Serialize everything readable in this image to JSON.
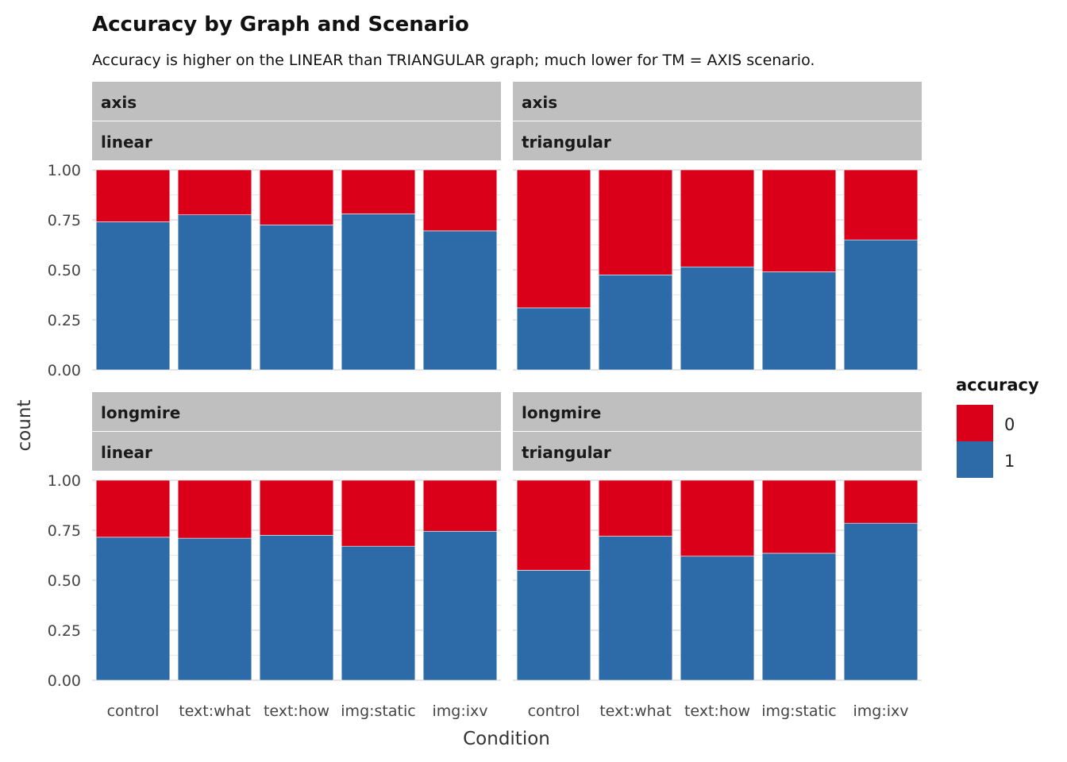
{
  "chart_data": {
    "type": "bar",
    "stacked": "fill",
    "title": "Accuracy by Graph and Scenario",
    "subtitle": "Accuracy is higher on the LINEAR than TRIANGULAR graph; much lower for TM = AXIS scenario.",
    "xlabel": "Condition",
    "ylabel": "count",
    "ylim": [
      0,
      1
    ],
    "yticks": [
      "0.00",
      "0.25",
      "0.50",
      "0.75",
      "1.00"
    ],
    "categories": [
      "control",
      "text:what",
      "text:how",
      "img:static",
      "img:ixv"
    ],
    "grid": true,
    "legend": {
      "title": "accuracy",
      "position": "right",
      "entries": [
        {
          "label": "0",
          "color": "#DA001A"
        },
        {
          "label": "1",
          "color": "#2C6AA8"
        }
      ]
    },
    "panels": [
      {
        "strips": [
          "axis",
          "linear"
        ],
        "series": [
          {
            "name": "1",
            "values": [
              0.74,
              0.775,
              0.725,
              0.78,
              0.695
            ]
          },
          {
            "name": "0",
            "values": [
              0.26,
              0.225,
              0.275,
              0.22,
              0.305
            ]
          }
        ]
      },
      {
        "strips": [
          "axis",
          "triangular"
        ],
        "series": [
          {
            "name": "1",
            "values": [
              0.31,
              0.475,
              0.515,
              0.49,
              0.65
            ]
          },
          {
            "name": "0",
            "values": [
              0.69,
              0.525,
              0.485,
              0.51,
              0.35
            ]
          }
        ]
      },
      {
        "strips": [
          "longmire",
          "linear"
        ],
        "series": [
          {
            "name": "1",
            "values": [
              0.715,
              0.71,
              0.725,
              0.67,
              0.745
            ]
          },
          {
            "name": "0",
            "values": [
              0.285,
              0.29,
              0.275,
              0.33,
              0.255
            ]
          }
        ]
      },
      {
        "strips": [
          "longmire",
          "triangular"
        ],
        "series": [
          {
            "name": "1",
            "values": [
              0.55,
              0.72,
              0.62,
              0.635,
              0.785
            ]
          },
          {
            "name": "0",
            "values": [
              0.45,
              0.28,
              0.38,
              0.365,
              0.215
            ]
          }
        ]
      }
    ]
  }
}
